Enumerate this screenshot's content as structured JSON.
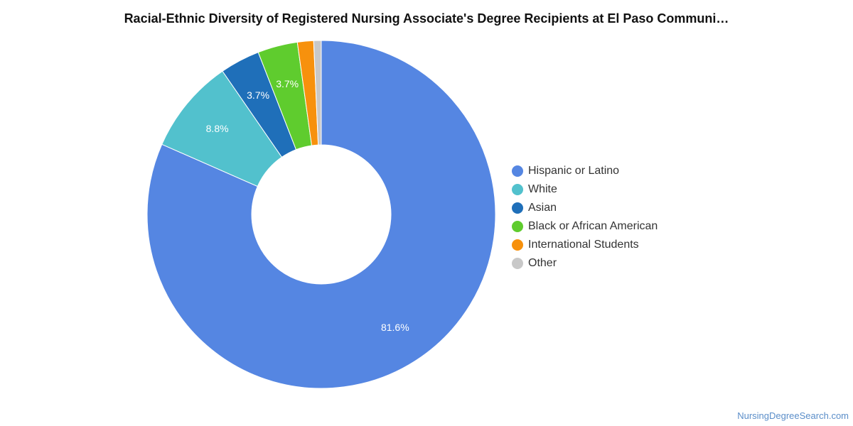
{
  "chart_data": {
    "type": "pie",
    "variant": "donut",
    "title": "Racial-Ethnic Diversity of Registered Nursing Associate's Degree Recipients at El Paso Communi…",
    "legend_position": "right",
    "slices": [
      {
        "label": "Hispanic or Latino",
        "value": 81.6,
        "display": "81.6%",
        "color": "#5586e2"
      },
      {
        "label": "White",
        "value": 8.8,
        "display": "8.8%",
        "color": "#52c1cd"
      },
      {
        "label": "Asian",
        "value": 3.7,
        "display": "3.7%",
        "color": "#1f6fb9"
      },
      {
        "label": "Black or African American",
        "value": 3.7,
        "display": "3.7%",
        "color": "#5fcc2e"
      },
      {
        "label": "International Students",
        "value": 1.5,
        "display": "",
        "color": "#f7910d"
      },
      {
        "label": "Other",
        "value": 0.7,
        "display": "",
        "color": "#c8c8c8"
      }
    ]
  },
  "footer": {
    "credit": "NursingDegreeSearch.com"
  }
}
